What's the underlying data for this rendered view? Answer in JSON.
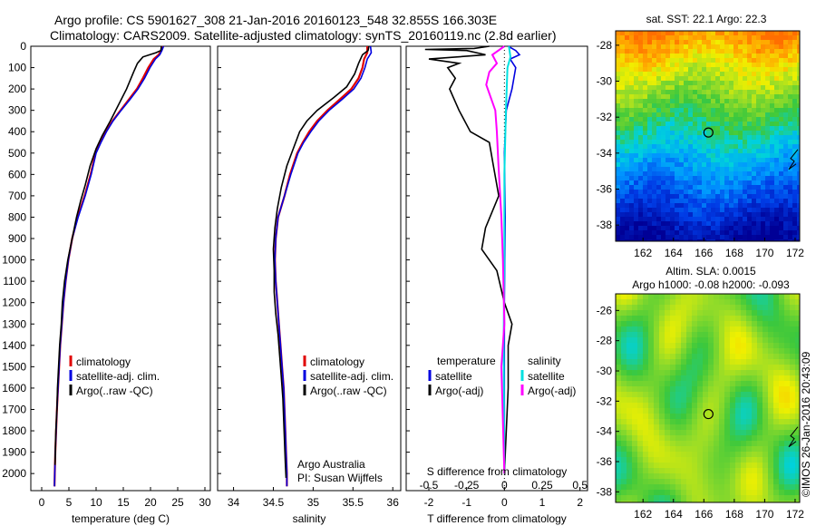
{
  "header": {
    "line1": "Argo profile: CS 5901627_308 21-Jan-2016 20160123_548 32.855S 166.303E",
    "line2": "Climatology: CARS2009. Satellite-adjusted climatology: synTS_20160119.nc (2.8d earlier)"
  },
  "colors": {
    "climatology": "#e00000",
    "satellite": "#0000e0",
    "argo": "#000000",
    "salinity_sat": "#00e0e0",
    "salinity_argo": "#ff00ff"
  },
  "chart_data": [
    {
      "type": "line",
      "panel": "temperature",
      "xlabel": "temperature (deg C)",
      "xlim": [
        -2,
        31
      ],
      "xticks": [
        0,
        5,
        10,
        15,
        20,
        25,
        30
      ],
      "ylim": [
        2080,
        0
      ],
      "yticks": [
        0,
        100,
        200,
        300,
        400,
        500,
        600,
        700,
        800,
        900,
        1000,
        1100,
        1200,
        1300,
        1400,
        1500,
        1600,
        1700,
        1800,
        1900,
        2000
      ],
      "legend": [
        "climatology",
        "satellite-adj. clim.",
        "Argo(..raw -QC)"
      ],
      "series": [
        {
          "name": "climatology",
          "points": [
            [
              22.3,
              0
            ],
            [
              22.0,
              20
            ],
            [
              21.5,
              40
            ],
            [
              20.6,
              60
            ],
            [
              19.6,
              100
            ],
            [
              18.6,
              150
            ],
            [
              17.5,
              200
            ],
            [
              16.0,
              250
            ],
            [
              14.5,
              300
            ],
            [
              13.0,
              350
            ],
            [
              11.8,
              400
            ],
            [
              10.8,
              450
            ],
            [
              9.9,
              500
            ],
            [
              9.0,
              600
            ],
            [
              7.9,
              700
            ],
            [
              6.6,
              800
            ],
            [
              5.6,
              900
            ],
            [
              4.9,
              1000
            ],
            [
              4.4,
              1100
            ],
            [
              4.0,
              1200
            ],
            [
              3.7,
              1300
            ],
            [
              3.4,
              1400
            ],
            [
              3.2,
              1500
            ],
            [
              3.0,
              1600
            ],
            [
              2.8,
              1700
            ],
            [
              2.65,
              1800
            ],
            [
              2.5,
              1900
            ],
            [
              2.4,
              2000
            ],
            [
              2.35,
              2060
            ]
          ]
        },
        {
          "name": "satellite-adj. clim.",
          "points": [
            [
              22.4,
              0
            ],
            [
              22.1,
              20
            ],
            [
              21.7,
              40
            ],
            [
              20.9,
              60
            ],
            [
              19.9,
              100
            ],
            [
              18.9,
              150
            ],
            [
              17.7,
              200
            ],
            [
              16.2,
              250
            ],
            [
              14.6,
              300
            ],
            [
              13.1,
              350
            ],
            [
              11.9,
              400
            ],
            [
              10.9,
              450
            ],
            [
              10.0,
              500
            ],
            [
              9.1,
              600
            ],
            [
              8.0,
              700
            ],
            [
              6.7,
              800
            ],
            [
              5.6,
              900
            ],
            [
              4.9,
              1000
            ],
            [
              4.4,
              1100
            ],
            [
              4.0,
              1200
            ],
            [
              3.7,
              1300
            ],
            [
              3.4,
              1400
            ],
            [
              3.2,
              1500
            ],
            [
              3.0,
              1600
            ],
            [
              2.8,
              1700
            ],
            [
              2.65,
              1800
            ],
            [
              2.5,
              1900
            ],
            [
              2.4,
              2000
            ],
            [
              2.35,
              2060
            ]
          ]
        },
        {
          "name": "Argo(..raw -QC)",
          "points": [
            [
              22.0,
              0
            ],
            [
              21.9,
              20
            ],
            [
              21.0,
              30
            ],
            [
              18.6,
              50
            ],
            [
              17.6,
              80
            ],
            [
              16.9,
              120
            ],
            [
              15.6,
              200
            ],
            [
              14.0,
              280
            ],
            [
              12.6,
              350
            ],
            [
              11.1,
              420
            ],
            [
              10.0,
              480
            ],
            [
              8.9,
              560
            ],
            [
              8.0,
              650
            ],
            [
              7.2,
              720
            ],
            [
              6.4,
              800
            ],
            [
              5.6,
              900
            ],
            [
              4.8,
              1000
            ],
            [
              4.2,
              1100
            ],
            [
              3.8,
              1200
            ],
            [
              3.6,
              1300
            ],
            [
              3.3,
              1400
            ],
            [
              3.1,
              1500
            ],
            [
              2.9,
              1600
            ],
            [
              2.8,
              1700
            ],
            [
              2.6,
              1800
            ],
            [
              2.5,
              1900
            ],
            [
              2.45,
              1960
            ]
          ]
        }
      ]
    },
    {
      "type": "line",
      "panel": "salinity",
      "xlabel": "salinity",
      "xlim": [
        33.8,
        36.1
      ],
      "xticks": [
        34,
        34.5,
        35,
        35.5,
        36
      ],
      "xticklabels": [
        "34",
        "34.5",
        "35",
        "35.5",
        "36"
      ],
      "ylim": [
        2080,
        0
      ],
      "legend": [
        "climatology",
        "satellite-adj. clim.",
        "Argo(..raw -QC)"
      ],
      "annotation": [
        "Argo Australia",
        "PI: Susan Wijffels"
      ],
      "series": [
        {
          "name": "climatology",
          "points": [
            [
              35.68,
              0
            ],
            [
              35.68,
              30
            ],
            [
              35.64,
              60
            ],
            [
              35.62,
              100
            ],
            [
              35.57,
              150
            ],
            [
              35.48,
              200
            ],
            [
              35.33,
              250
            ],
            [
              35.18,
              300
            ],
            [
              35.05,
              350
            ],
            [
              34.95,
              400
            ],
            [
              34.87,
              450
            ],
            [
              34.8,
              500
            ],
            [
              34.71,
              600
            ],
            [
              34.64,
              700
            ],
            [
              34.56,
              800
            ],
            [
              34.53,
              900
            ],
            [
              34.52,
              1000
            ],
            [
              34.53,
              1100
            ],
            [
              34.55,
              1200
            ],
            [
              34.57,
              1300
            ],
            [
              34.59,
              1400
            ],
            [
              34.61,
              1500
            ],
            [
              34.63,
              1600
            ],
            [
              34.64,
              1700
            ],
            [
              34.65,
              1800
            ],
            [
              34.66,
              1900
            ],
            [
              34.67,
              2000
            ],
            [
              34.67,
              2060
            ]
          ]
        },
        {
          "name": "satellite-adj. clim.",
          "points": [
            [
              35.72,
              0
            ],
            [
              35.73,
              30
            ],
            [
              35.68,
              60
            ],
            [
              35.65,
              100
            ],
            [
              35.6,
              150
            ],
            [
              35.51,
              200
            ],
            [
              35.36,
              250
            ],
            [
              35.2,
              300
            ],
            [
              35.07,
              350
            ],
            [
              34.97,
              400
            ],
            [
              34.88,
              450
            ],
            [
              34.81,
              500
            ],
            [
              34.72,
              600
            ],
            [
              34.64,
              700
            ],
            [
              34.56,
              800
            ],
            [
              34.53,
              900
            ],
            [
              34.52,
              1000
            ],
            [
              34.53,
              1100
            ],
            [
              34.55,
              1200
            ],
            [
              34.57,
              1300
            ],
            [
              34.59,
              1400
            ],
            [
              34.61,
              1500
            ],
            [
              34.63,
              1600
            ],
            [
              34.64,
              1700
            ],
            [
              34.65,
              1800
            ],
            [
              34.66,
              1900
            ],
            [
              34.67,
              2000
            ],
            [
              34.67,
              2060
            ]
          ]
        },
        {
          "name": "Argo(..raw -QC)",
          "points": [
            [
              35.7,
              0
            ],
            [
              35.69,
              20
            ],
            [
              35.62,
              40
            ],
            [
              35.57,
              80
            ],
            [
              35.52,
              130
            ],
            [
              35.42,
              190
            ],
            [
              35.26,
              240
            ],
            [
              35.05,
              300
            ],
            [
              34.92,
              350
            ],
            [
              34.83,
              400
            ],
            [
              34.75,
              480
            ],
            [
              34.67,
              560
            ],
            [
              34.6,
              660
            ],
            [
              34.55,
              760
            ],
            [
              34.52,
              850
            ],
            [
              34.5,
              950
            ],
            [
              34.51,
              1050
            ],
            [
              34.51,
              1150
            ],
            [
              34.53,
              1250
            ],
            [
              34.56,
              1350
            ],
            [
              34.58,
              1450
            ],
            [
              34.6,
              1550
            ],
            [
              34.62,
              1650
            ],
            [
              34.63,
              1750
            ],
            [
              34.64,
              1850
            ],
            [
              34.65,
              1950
            ],
            [
              34.66,
              2020
            ]
          ]
        }
      ]
    },
    {
      "type": "line",
      "panel": "difference",
      "xlabel": "T difference from climatology",
      "xlabel2": "S difference from climatology",
      "xlim": [
        -2.6,
        2.2
      ],
      "xticks": [
        -2,
        -1,
        0,
        1,
        2
      ],
      "xticks2_labels": [
        "-0.5",
        "-0.25",
        "0",
        "0.25",
        "0.5"
      ],
      "legend_left_title": "temperature",
      "legend_right_title": "salinity",
      "legend": [
        "satellite",
        "Argo(-adj)",
        "satellite",
        "Argo(-adj)"
      ],
      "series": [
        {
          "name": "T satellite",
          "points": [
            [
              0.1,
              0
            ],
            [
              0.3,
              20
            ],
            [
              0.4,
              40
            ],
            [
              0.15,
              60
            ],
            [
              0.3,
              100
            ],
            [
              0.2,
              200
            ],
            [
              0.05,
              300
            ],
            [
              0.0,
              500
            ],
            [
              0.02,
              800
            ],
            [
              0.0,
              1200
            ],
            [
              0.0,
              2000
            ]
          ]
        },
        {
          "name": "T Argo(-adj)",
          "points": [
            [
              -0.4,
              0
            ],
            [
              -0.8,
              10
            ],
            [
              -2.1,
              15
            ],
            [
              -1.0,
              20
            ],
            [
              -0.5,
              40
            ],
            [
              -2.0,
              60
            ],
            [
              -1.2,
              80
            ],
            [
              -1.5,
              100
            ],
            [
              -1.3,
              150
            ],
            [
              -1.45,
              200
            ],
            [
              -1.2,
              300
            ],
            [
              -0.9,
              400
            ],
            [
              -0.4,
              450
            ],
            [
              -0.3,
              550
            ],
            [
              -0.15,
              700
            ],
            [
              -0.5,
              850
            ],
            [
              -0.6,
              950
            ],
            [
              -0.2,
              1050
            ],
            [
              0.0,
              1200
            ],
            [
              0.2,
              1300
            ],
            [
              0.1,
              1400
            ],
            [
              0.1,
              1600
            ],
            [
              0.05,
              1800
            ],
            [
              0.0,
              2000
            ]
          ]
        },
        {
          "name": "S satellite",
          "points": [
            [
              0.03,
              0
            ],
            [
              0.04,
              50
            ],
            [
              0.02,
              100
            ],
            [
              0.01,
              300
            ],
            [
              0.0,
              600
            ],
            [
              0.0,
              1000
            ],
            [
              -0.005,
              1400
            ],
            [
              0.0,
              2000
            ]
          ]
        },
        {
          "name": "S Argo(-adj)",
          "points": [
            [
              0.0,
              0
            ],
            [
              -0.08,
              40
            ],
            [
              -0.05,
              80
            ],
            [
              -0.1,
              120
            ],
            [
              -0.12,
              180
            ],
            [
              -0.06,
              300
            ],
            [
              -0.05,
              400
            ],
            [
              -0.04,
              550
            ],
            [
              -0.02,
              800
            ],
            [
              -0.01,
              1000
            ],
            [
              0.0,
              1300
            ],
            [
              -0.02,
              1500
            ],
            [
              0.0,
              2000
            ]
          ]
        }
      ]
    },
    {
      "type": "heatmap",
      "panel": "sst_map",
      "title": "sat. SST: 22.1  Argo: 22.3",
      "xticks": [
        162,
        164,
        166,
        168,
        170,
        172
      ],
      "yticks": [
        -28,
        -30,
        -32,
        -34,
        -36,
        -38
      ],
      "xlim": [
        160.2,
        172.3
      ],
      "ylim": [
        -38.9,
        -27.2
      ],
      "marker": [
        166.3,
        -32.855
      ]
    },
    {
      "type": "heatmap",
      "panel": "sla_map",
      "title": "Altim. SLA: 0.0015",
      "subtitle": "Argo h1000: -0.08 h2000: -0.093",
      "xticks": [
        162,
        164,
        166,
        168,
        170,
        172
      ],
      "yticks": [
        -26,
        -28,
        -30,
        -32,
        -34,
        -36,
        -38
      ],
      "xlim": [
        160.2,
        172.3
      ],
      "ylim": [
        -38.7,
        -24.9
      ],
      "marker": [
        166.3,
        -32.855
      ]
    }
  ],
  "footer": {
    "credit": "©IMOS 26-Jan-2016 20:43:09"
  }
}
